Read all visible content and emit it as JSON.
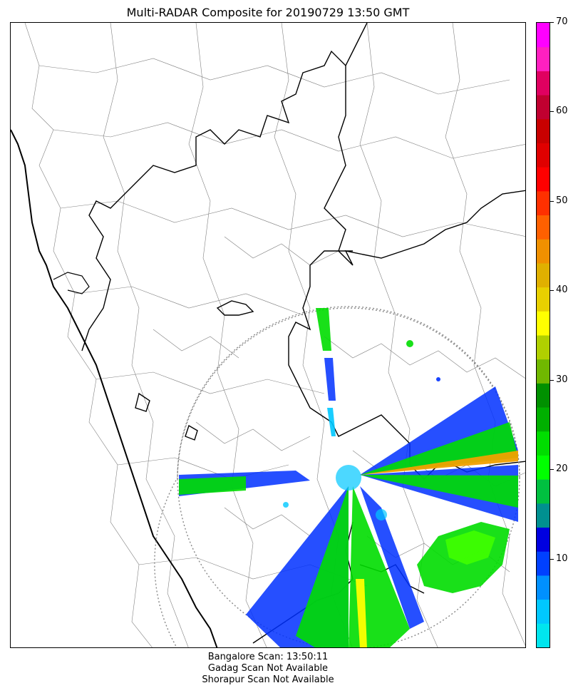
{
  "title": "Multi-RADAR Composite for 20190729 13:50 GMT",
  "footer": {
    "line1": "Bangalore Scan: 13:50:11",
    "line2": "Gadag Scan Not Available",
    "line3": "Shorapur Scan Not Available"
  },
  "colorbar": {
    "min": 0,
    "max": 70,
    "ticks": [
      "10",
      "20",
      "30",
      "40",
      "50",
      "60",
      "70"
    ],
    "colors": [
      "#00e5ee",
      "#00c8ff",
      "#0090ff",
      "#0040ff",
      "#0000e0",
      "#009090",
      "#00c040",
      "#00ff00",
      "#00dd00",
      "#00b000",
      "#009000",
      "#70b800",
      "#b0d000",
      "#ffff00",
      "#e8d000",
      "#e0b000",
      "#f09000",
      "#ff6000",
      "#ff3000",
      "#ff0000",
      "#e00000",
      "#c80000",
      "#c00030",
      "#e00060",
      "#ff20c0",
      "#ff00ff"
    ]
  },
  "map": {
    "radar_station": "Bangalore",
    "reflectivity_colors": {
      "light_blue": "#00c8ff",
      "blue": "#0030ff",
      "green": "#00dd00",
      "lime": "#40ff00",
      "yellow": "#ffff00",
      "orange": "#f0a000"
    },
    "coastline_color": "#000000",
    "range_ring_color": "#888888",
    "border_color": "#808080"
  }
}
